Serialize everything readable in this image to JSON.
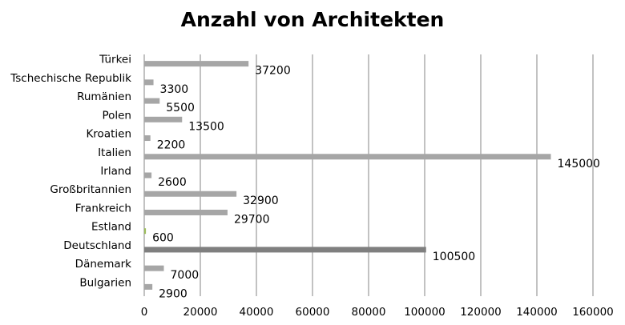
{
  "chart_data": {
    "type": "bar",
    "orientation": "horizontal",
    "title": "Anzahl von Architekten",
    "xlabel": "",
    "ylabel": "",
    "categories": [
      "Bulgarien",
      "Dänemark",
      "Deutschland",
      "Estland",
      "Frankreich",
      "Großbritannien",
      "Irland",
      "Italien",
      "Kroatien",
      "Polen",
      "Rumänien",
      "Tschechische Republik",
      "Türkei"
    ],
    "values": [
      2900,
      7000,
      100500,
      600,
      29700,
      32900,
      2600,
      145000,
      2200,
      13500,
      5500,
      3300,
      37200
    ],
    "data_labels": [
      "2900",
      "7000",
      "100500",
      "600",
      "29700",
      "32900",
      "2600",
      "145000",
      "2200",
      "13500",
      "5500",
      "3300",
      "37200"
    ],
    "bar_colors": [
      "#a6a6a6",
      "#a6a6a6",
      "#7f7f7f",
      "#9bbb59",
      "#a6a6a6",
      "#a6a6a6",
      "#a6a6a6",
      "#a6a6a6",
      "#a6a6a6",
      "#a6a6a6",
      "#a6a6a6",
      "#a6a6a6",
      "#a6a6a6"
    ],
    "xlim": [
      0,
      160000
    ],
    "xticks": [
      0,
      20000,
      40000,
      60000,
      80000,
      100000,
      120000,
      140000,
      160000
    ],
    "xtick_labels": [
      "0",
      "20000",
      "40000",
      "60000",
      "80000",
      "100000",
      "120000",
      "140000",
      "160000"
    ],
    "grid": "vertical",
    "gridline_color": "#868686",
    "legend": "none"
  }
}
